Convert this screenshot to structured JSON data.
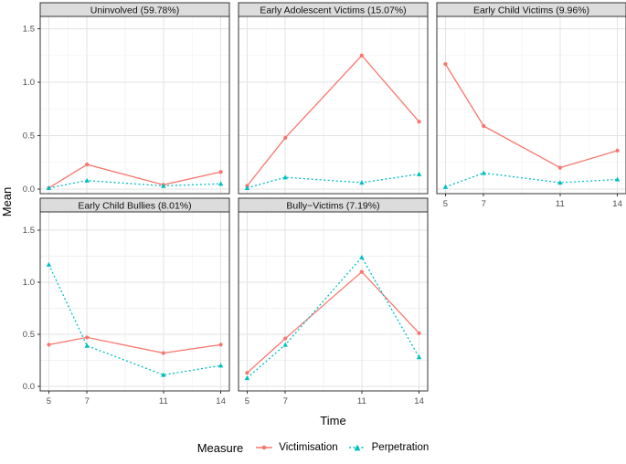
{
  "figure": {
    "xlabel": "Time",
    "ylabel": "Mean",
    "legend_title": "Measure"
  },
  "chart_data": {
    "type": "line",
    "facets": true,
    "x": [
      5,
      7,
      11,
      14
    ],
    "x_tick_labels": [
      "5",
      "7",
      "11",
      "14"
    ],
    "y_tick_values": [
      0.0,
      0.5,
      1.0,
      1.5
    ],
    "y_tick_labels": [
      "0.0",
      "0.5",
      "1.0",
      "1.5"
    ],
    "x_minor": [
      6,
      9,
      12.5
    ],
    "y_minor": [
      0.25,
      0.75,
      1.25
    ],
    "xlim": [
      4.55,
      14.45
    ],
    "ylim": [
      -0.04,
      1.62
    ],
    "xlabel": "Time",
    "ylabel": "Mean",
    "grid": true,
    "legend": {
      "title": "Measure",
      "position": "bottom",
      "items": [
        {
          "label": "Victimisation",
          "color": "#F8766D",
          "marker": "circle",
          "line": "solid"
        },
        {
          "label": "Perpetration",
          "color": "#00BFC4",
          "marker": "triangle",
          "line": "dotted"
        }
      ]
    },
    "colors": {
      "victimisation": "#F8766D",
      "perpetration": "#00BFC4",
      "strip_bg": "#DCDCDC",
      "panel_bg": "#FFFFFF",
      "panel_border": "#333333",
      "grid_major": "#E3E3E3",
      "grid_minor": "#F1F1F1",
      "tick_label": "#4D4D4D",
      "strip_text": "#111111"
    },
    "panels": [
      {
        "title": "Uninvolved (59.78%)",
        "series": [
          {
            "name": "Victimisation",
            "values": [
              0.01,
              0.23,
              0.04,
              0.16
            ]
          },
          {
            "name": "Perpetration",
            "values": [
              0.01,
              0.08,
              0.03,
              0.05
            ]
          }
        ]
      },
      {
        "title": "Early Adolescent Victims (15.07%)",
        "series": [
          {
            "name": "Victimisation",
            "values": [
              0.03,
              0.48,
              1.25,
              0.63
            ]
          },
          {
            "name": "Perpetration",
            "values": [
              0.01,
              0.11,
              0.06,
              0.14
            ]
          }
        ]
      },
      {
        "title": "Early Child Victims (9.96%)",
        "series": [
          {
            "name": "Victimisation",
            "values": [
              1.17,
              0.59,
              0.2,
              0.36
            ]
          },
          {
            "name": "Perpetration",
            "values": [
              0.02,
              0.15,
              0.06,
              0.09
            ]
          }
        ]
      },
      {
        "title": "Early Child Bullies (8.01%)",
        "series": [
          {
            "name": "Victimisation",
            "values": [
              0.4,
              0.47,
              0.32,
              0.4
            ]
          },
          {
            "name": "Perpetration",
            "values": [
              1.17,
              0.39,
              0.11,
              0.2
            ]
          }
        ]
      },
      {
        "title": "Bully−Victims (7.19%)",
        "series": [
          {
            "name": "Victimisation",
            "values": [
              0.13,
              0.46,
              1.1,
              0.51
            ]
          },
          {
            "name": "Perpetration",
            "values": [
              0.08,
              0.4,
              1.24,
              0.28
            ]
          }
        ]
      }
    ]
  }
}
